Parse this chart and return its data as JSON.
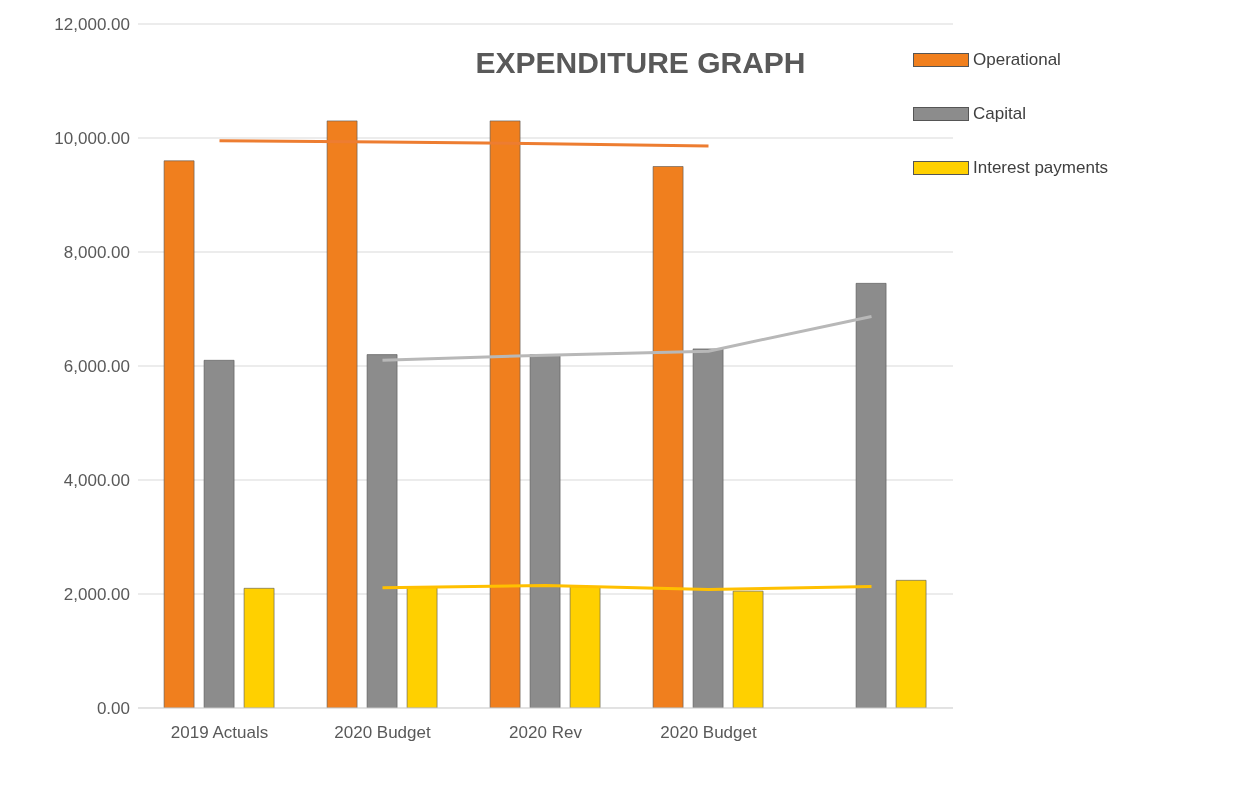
{
  "chart_data": {
    "type": "bar",
    "title": "EXPENDITURE GRAPH",
    "categories": [
      "2019 Actuals",
      "2020 Budget",
      "2020 Rev",
      "2020 Budget",
      null
    ],
    "series": [
      {
        "name": "Operational",
        "color": "#f07f1e",
        "values": [
          9600,
          10300,
          10300,
          9500,
          null
        ]
      },
      {
        "name": "Capital",
        "color": "#8c8c8c",
        "values": [
          6100,
          6200,
          6200,
          6300,
          7450
        ]
      },
      {
        "name": "Interest payments",
        "color": "#ffd000",
        "values": [
          2100,
          2130,
          2130,
          2050,
          2240
        ]
      },
      {
        "type": "line",
        "color": "#ed7d31",
        "values": [
          9950,
          9930,
          9900,
          9860,
          null
        ]
      },
      {
        "type": "line",
        "color": "#b8b8b8",
        "values": [
          null,
          6100,
          6190,
          6260,
          6870
        ]
      },
      {
        "type": "line",
        "color": "#ffc000",
        "values": [
          null,
          2110,
          2150,
          2080,
          2130
        ]
      }
    ],
    "ylim": [
      0,
      12000
    ],
    "yticks": [
      {
        "value": 0,
        "label": "0.00"
      },
      {
        "value": 2000,
        "label": "2,000.00"
      },
      {
        "value": 4000,
        "label": "4,000.00"
      },
      {
        "value": 6000,
        "label": "6,000.00"
      },
      {
        "value": 8000,
        "label": "8,000.00"
      },
      {
        "value": 10000,
        "label": "10,000.00"
      },
      {
        "value": 12000,
        "label": "12,000.00"
      }
    ],
    "grid": "y",
    "legend": "top right",
    "marker": "none"
  }
}
